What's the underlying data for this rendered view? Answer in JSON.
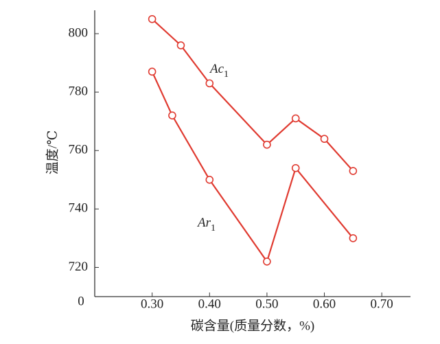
{
  "chart_data": {
    "type": "line",
    "x_label": "碳含量(质量分数，%)",
    "y_label": "温度/℃",
    "y_origin_label": "0",
    "xlim": [
      0.2,
      0.75
    ],
    "xticks": [
      {
        "value": 0.3,
        "label": "0.30"
      },
      {
        "value": 0.4,
        "label": "0.40"
      },
      {
        "value": 0.5,
        "label": "0.50"
      },
      {
        "value": 0.6,
        "label": "0.60"
      },
      {
        "value": 0.7,
        "label": "0.70"
      }
    ],
    "ylim": [
      710,
      808
    ],
    "yticks": [
      720,
      740,
      760,
      780,
      800
    ],
    "grid": false,
    "series": [
      {
        "name": "Ac",
        "subscript": "1",
        "color": "#e03a30",
        "x": [
          0.3,
          0.35,
          0.4,
          0.5,
          0.55,
          0.6,
          0.65
        ],
        "values": [
          805,
          796,
          783,
          762,
          771,
          764,
          753
        ]
      },
      {
        "name": "Ar",
        "subscript": "1",
        "color": "#e03a30",
        "x": [
          0.3,
          0.335,
          0.4,
          0.5,
          0.55,
          0.65
        ],
        "values": [
          787,
          772,
          750,
          722,
          754,
          730
        ]
      }
    ]
  }
}
